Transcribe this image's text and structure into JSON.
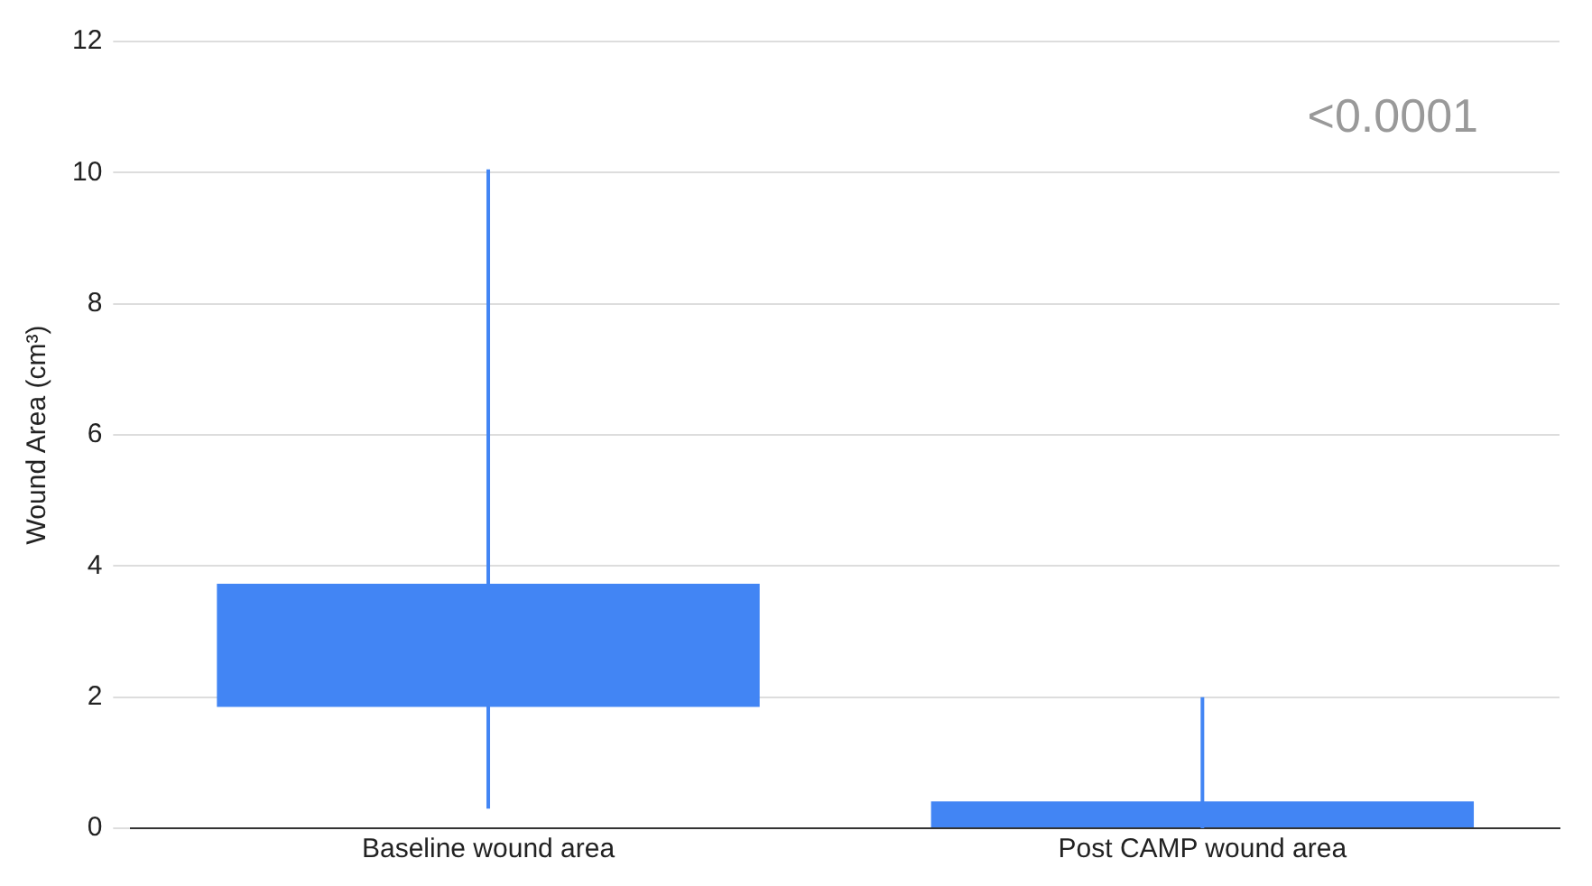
{
  "chart_data": {
    "type": "candlestick",
    "ylabel": "Wound Area (cm³)",
    "categories": [
      "Baseline wound area",
      "Post CAMP wound area"
    ],
    "ohlc": [
      [
        1.85,
        10.05,
        0.3,
        3.73
      ],
      [
        0,
        2,
        0,
        0.41
      ]
    ],
    "color": "#4285f4",
    "ylim": [
      0,
      12
    ],
    "yticks": [
      0,
      2,
      4,
      6,
      8,
      10,
      12
    ],
    "grid": "y",
    "annotations": [
      "<0.0001"
    ]
  }
}
